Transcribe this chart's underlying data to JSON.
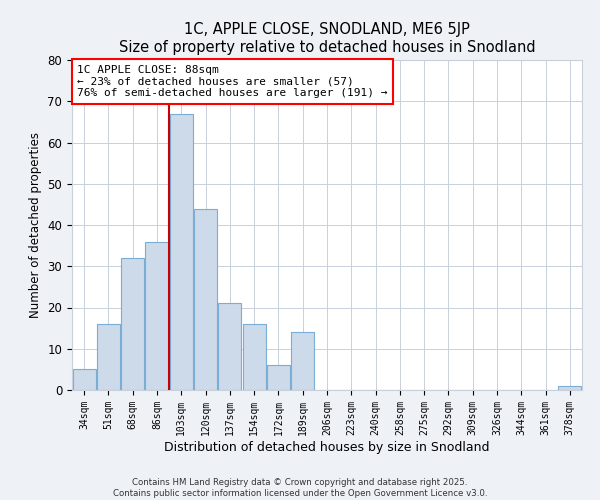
{
  "title": "1C, APPLE CLOSE, SNODLAND, ME6 5JP",
  "subtitle": "Size of property relative to detached houses in Snodland",
  "bar_labels": [
    "34sqm",
    "51sqm",
    "68sqm",
    "86sqm",
    "103sqm",
    "120sqm",
    "137sqm",
    "154sqm",
    "172sqm",
    "189sqm",
    "206sqm",
    "223sqm",
    "240sqm",
    "258sqm",
    "275sqm",
    "292sqm",
    "309sqm",
    "326sqm",
    "344sqm",
    "361sqm",
    "378sqm"
  ],
  "bar_values": [
    5,
    16,
    32,
    36,
    67,
    44,
    21,
    16,
    6,
    14,
    0,
    0,
    0,
    0,
    0,
    0,
    0,
    0,
    0,
    0,
    1
  ],
  "bar_color": "#ccdaea",
  "bar_edge_color": "#7aaed6",
  "vline_color": "#cc0000",
  "annotation_title": "1C APPLE CLOSE: 88sqm",
  "annotation_line1": "← 23% of detached houses are smaller (57)",
  "annotation_line2": "76% of semi-detached houses are larger (191) →",
  "xlabel": "Distribution of detached houses by size in Snodland",
  "ylabel": "Number of detached properties",
  "ylim": [
    0,
    80
  ],
  "yticks": [
    0,
    10,
    20,
    30,
    40,
    50,
    60,
    70,
    80
  ],
  "footnote1": "Contains HM Land Registry data © Crown copyright and database right 2025.",
  "footnote2": "Contains public sector information licensed under the Open Government Licence v3.0.",
  "bg_color": "#eef2f7",
  "plot_bg_color": "#ffffff",
  "grid_color": "#c8d0dc"
}
